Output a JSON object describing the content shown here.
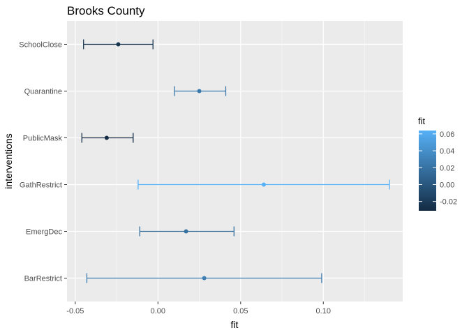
{
  "chart_data": {
    "type": "scatter",
    "subtype": "point-with-errorbars",
    "orientation": "horizontal",
    "title": "Brooks County",
    "xlabel": "fit",
    "ylabel": "interventions",
    "xlim": [
      -0.055,
      0.148
    ],
    "x_ticks": [
      {
        "value": -0.05,
        "label": "-0.05"
      },
      {
        "value": 0.0,
        "label": "0.00"
      },
      {
        "value": 0.05,
        "label": "0.05"
      },
      {
        "value": 0.1,
        "label": "0.10"
      }
    ],
    "categories": [
      "SchoolClose",
      "Quarantine",
      "PublicMask",
      "GathRestrict",
      "EmergDec",
      "BarRestrict"
    ],
    "points": [
      {
        "category": "SchoolClose",
        "fit": -0.024,
        "lower": -0.045,
        "upper": -0.003
      },
      {
        "category": "Quarantine",
        "fit": 0.025,
        "lower": 0.01,
        "upper": 0.041
      },
      {
        "category": "PublicMask",
        "fit": -0.031,
        "lower": -0.046,
        "upper": -0.015
      },
      {
        "category": "GathRestrict",
        "fit": 0.064,
        "lower": -0.012,
        "upper": 0.14
      },
      {
        "category": "EmergDec",
        "fit": 0.017,
        "lower": -0.011,
        "upper": 0.046
      },
      {
        "category": "BarRestrict",
        "fit": 0.028,
        "lower": -0.043,
        "upper": 0.099
      }
    ],
    "grid": true,
    "legend": {
      "title": "fit",
      "placement": "right",
      "type": "color-gradient",
      "range": [
        -0.031,
        0.064
      ],
      "ticks": [
        {
          "value": 0.06,
          "label": "0.06"
        },
        {
          "value": 0.04,
          "label": "0.04"
        },
        {
          "value": 0.02,
          "label": "0.02"
        },
        {
          "value": 0.0,
          "label": "0.00"
        },
        {
          "value": -0.02,
          "label": "-0.02"
        }
      ],
      "color_low": "#132B43",
      "color_high": "#56B1F7"
    },
    "colors": {
      "panel_background": "#EBEBEB",
      "gridline": "#FFFFFF",
      "tick_text": "#4D4D4D",
      "tick_mark": "#333333"
    }
  }
}
